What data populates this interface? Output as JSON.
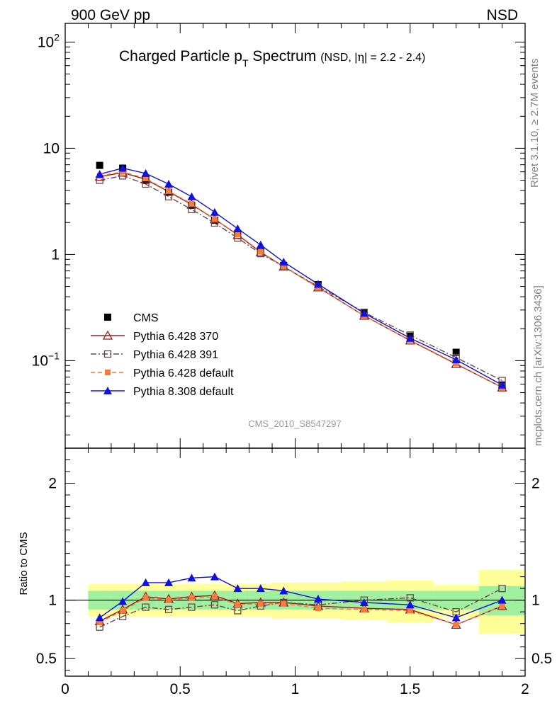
{
  "header": {
    "left": "900 GeV pp",
    "right": "NSD"
  },
  "title": {
    "main_a": "Charged Particle p",
    "main_sub": "T",
    "main_b": " Spectrum",
    "qualifier_a": "(NSD, |",
    "qualifier_eta": "η",
    "qualifier_b": "| = 2.2 - 2.4)"
  },
  "side_labels": {
    "rivet": "Rivet 3.1.10, ≥ 2.7M events",
    "site": "mcplots.cern.ch [arXiv:1306.3436]"
  },
  "analysis_id": "CMS_2010_S8547297",
  "colors": {
    "cms": "#000000",
    "p6_370": "#9b1c1c",
    "p6_391": "#6b4848",
    "p6_default": "#f47c3c",
    "p8_default": "#1010e0",
    "band_inner": "#a0f0a0",
    "band_outer": "#ffff9a"
  },
  "chart_data": [
    {
      "type": "scatter",
      "name": "main",
      "yscale": "log",
      "xlim": [
        0,
        2
      ],
      "ylim": [
        0.015,
        150
      ],
      "y_tick_labels": [
        "10^-1",
        "1",
        "10",
        "10^2"
      ],
      "legend_position": "bottom-left",
      "x": [
        0.15,
        0.25,
        0.35,
        0.45,
        0.55,
        0.65,
        0.75,
        0.85,
        0.95,
        1.1,
        1.3,
        1.5,
        1.7,
        1.9
      ],
      "series": [
        {
          "key": "cms",
          "name": "CMS",
          "values": [
            6.9,
            6.5,
            5.0,
            3.85,
            2.9,
            2.1,
            1.58,
            1.08,
            0.79,
            0.52,
            0.285,
            0.17,
            0.12,
            0.059
          ]
        },
        {
          "key": "p6_370",
          "name": "Pythia 6.428 370",
          "values": [
            5.4,
            5.9,
            5.1,
            3.9,
            2.95,
            2.15,
            1.53,
            1.05,
            0.77,
            0.49,
            0.265,
            0.155,
            0.093,
            0.056
          ]
        },
        {
          "key": "p6_391",
          "name": "Pythia 6.428 391",
          "values": [
            5.0,
            5.5,
            4.6,
            3.5,
            2.65,
            1.98,
            1.43,
            1.02,
            0.77,
            0.5,
            0.285,
            0.174,
            0.107,
            0.065
          ]
        },
        {
          "key": "p6_default",
          "name": "Pythia 6.428 default",
          "values": [
            5.5,
            6.0,
            5.2,
            3.95,
            3.0,
            2.15,
            1.55,
            1.06,
            0.77,
            0.49,
            0.265,
            0.156,
            0.094,
            0.056
          ]
        },
        {
          "key": "p8_default",
          "name": "Pythia 8.308 default",
          "values": [
            5.7,
            6.5,
            5.8,
            4.6,
            3.5,
            2.5,
            1.75,
            1.23,
            0.85,
            0.525,
            0.28,
            0.163,
            0.102,
            0.059
          ]
        }
      ]
    },
    {
      "type": "line",
      "name": "ratio",
      "ylabel": "Ratio to CMS",
      "xlim": [
        0,
        2
      ],
      "ylim": [
        0.35,
        2.3
      ],
      "x_tick_labels": [
        "0",
        "0.5",
        "1",
        "1.5",
        "2"
      ],
      "y_tick_labels": [
        "0.5",
        "1",
        "2"
      ],
      "bands": [
        {
          "x0": 0.1,
          "x1": 0.2,
          "inner": [
            0.92,
            1.08
          ],
          "outer": [
            0.86,
            1.14
          ]
        },
        {
          "x0": 0.2,
          "x1": 0.3,
          "inner": [
            0.92,
            1.08
          ],
          "outer": [
            0.86,
            1.14
          ]
        },
        {
          "x0": 0.3,
          "x1": 0.4,
          "inner": [
            0.92,
            1.08
          ],
          "outer": [
            0.86,
            1.14
          ]
        },
        {
          "x0": 0.4,
          "x1": 0.5,
          "inner": [
            0.92,
            1.08
          ],
          "outer": [
            0.86,
            1.14
          ]
        },
        {
          "x0": 0.5,
          "x1": 0.6,
          "inner": [
            0.92,
            1.08
          ],
          "outer": [
            0.86,
            1.14
          ]
        },
        {
          "x0": 0.6,
          "x1": 0.7,
          "inner": [
            0.92,
            1.08
          ],
          "outer": [
            0.86,
            1.14
          ]
        },
        {
          "x0": 0.7,
          "x1": 0.8,
          "inner": [
            0.92,
            1.08
          ],
          "outer": [
            0.86,
            1.14
          ]
        },
        {
          "x0": 0.8,
          "x1": 0.9,
          "inner": [
            0.92,
            1.08
          ],
          "outer": [
            0.86,
            1.14
          ]
        },
        {
          "x0": 0.9,
          "x1": 1.0,
          "inner": [
            0.92,
            1.08
          ],
          "outer": [
            0.84,
            1.15
          ]
        },
        {
          "x0": 1.0,
          "x1": 1.2,
          "inner": [
            0.92,
            1.08
          ],
          "outer": [
            0.84,
            1.15
          ]
        },
        {
          "x0": 1.2,
          "x1": 1.4,
          "inner": [
            0.92,
            1.08
          ],
          "outer": [
            0.83,
            1.16
          ]
        },
        {
          "x0": 1.4,
          "x1": 1.6,
          "inner": [
            0.92,
            1.08
          ],
          "outer": [
            0.81,
            1.17
          ]
        },
        {
          "x0": 1.6,
          "x1": 1.8,
          "inner": [
            0.92,
            1.08
          ],
          "outer": [
            0.85,
            1.13
          ]
        },
        {
          "x0": 1.8,
          "x1": 2.0,
          "inner": [
            0.87,
            1.12
          ],
          "outer": [
            0.71,
            1.26
          ]
        }
      ],
      "x": [
        0.15,
        0.25,
        0.35,
        0.45,
        0.55,
        0.65,
        0.75,
        0.85,
        0.95,
        1.1,
        1.3,
        1.5,
        1.7,
        1.9
      ],
      "series": [
        {
          "key": "p6_370",
          "name": "Pythia 6.428 370",
          "values": [
            0.82,
            0.92,
            1.03,
            1.01,
            1.03,
            1.04,
            0.97,
            0.98,
            0.98,
            0.95,
            0.93,
            0.92,
            0.79,
            0.95
          ]
        },
        {
          "key": "p6_391",
          "name": "Pythia 6.428 391",
          "values": [
            0.77,
            0.86,
            0.94,
            0.92,
            0.94,
            0.96,
            0.91,
            0.95,
            0.98,
            0.96,
            1.0,
            1.02,
            0.9,
            1.1
          ]
        },
        {
          "key": "p6_default",
          "name": "Pythia 6.428 default",
          "values": [
            0.81,
            0.91,
            1.02,
            1.0,
            1.02,
            1.03,
            0.96,
            0.97,
            0.97,
            0.93,
            0.92,
            0.91,
            0.79,
            0.95
          ]
        },
        {
          "key": "p8_default",
          "name": "Pythia 8.308 default",
          "values": [
            0.85,
            0.99,
            1.15,
            1.15,
            1.19,
            1.2,
            1.1,
            1.1,
            1.08,
            1.01,
            0.98,
            0.96,
            0.85,
            1.0
          ]
        }
      ]
    }
  ]
}
